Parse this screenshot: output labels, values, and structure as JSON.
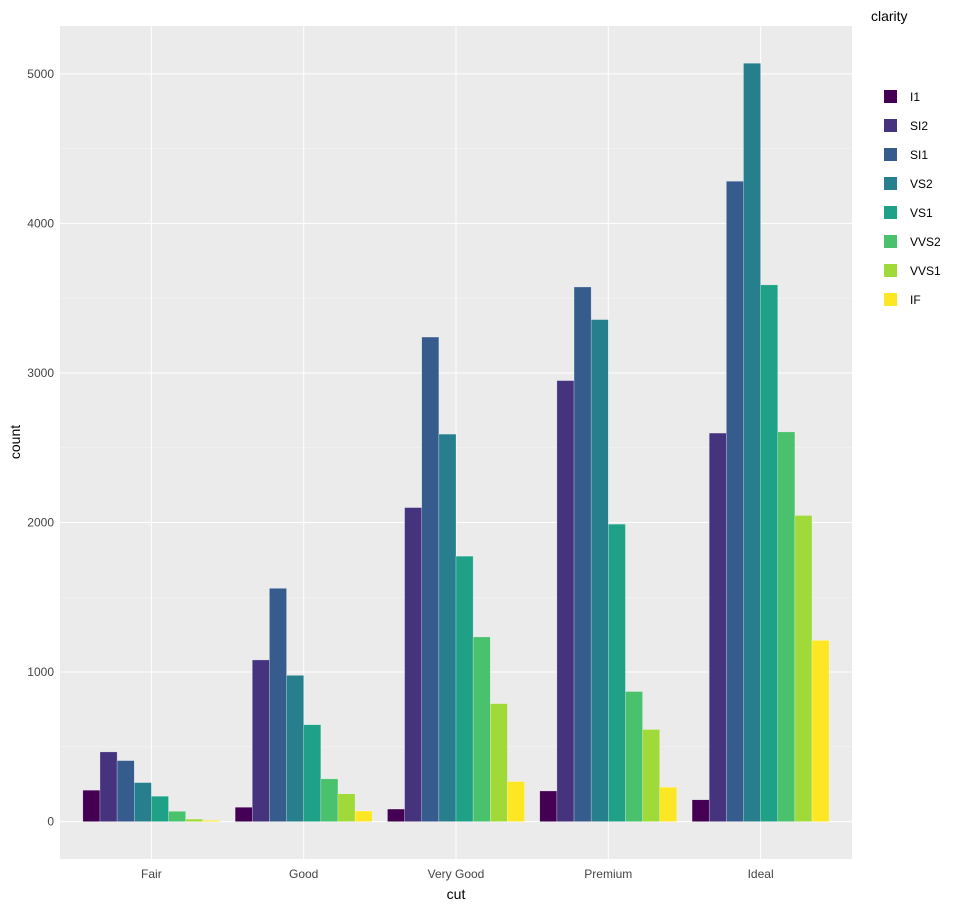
{
  "chart_data": {
    "type": "bar",
    "xlabel": "cut",
    "ylabel": "count",
    "categories": [
      "Fair",
      "Good",
      "Very Good",
      "Premium",
      "Ideal"
    ],
    "yticks": [
      0,
      1000,
      2000,
      3000,
      4000,
      5000
    ],
    "ytick_labels": [
      "0",
      "1000",
      "2000",
      "3000",
      "4000",
      "5000"
    ],
    "ylim": [
      -250,
      5320
    ],
    "grid": true,
    "legend": {
      "title": "clarity",
      "position": "right"
    },
    "series": [
      {
        "name": "I1",
        "color": "#440154",
        "values": [
          210,
          96,
          84,
          205,
          146
        ]
      },
      {
        "name": "SI2",
        "color": "#46337e",
        "values": [
          466,
          1081,
          2100,
          2949,
          2598
        ]
      },
      {
        "name": "SI1",
        "color": "#365c8d",
        "values": [
          408,
          1560,
          3240,
          3575,
          4282
        ]
      },
      {
        "name": "VS2",
        "color": "#277f8e",
        "values": [
          261,
          978,
          2591,
          3357,
          5071
        ]
      },
      {
        "name": "VS1",
        "color": "#1fa187",
        "values": [
          170,
          648,
          1775,
          1989,
          3589
        ]
      },
      {
        "name": "VVS2",
        "color": "#4ac16d",
        "values": [
          69,
          286,
          1235,
          870,
          2606
        ]
      },
      {
        "name": "VVS1",
        "color": "#a0da39",
        "values": [
          17,
          186,
          789,
          616,
          2047
        ]
      },
      {
        "name": "IF",
        "color": "#fde725",
        "values": [
          9,
          71,
          268,
          230,
          1212
        ]
      }
    ]
  },
  "colors": {
    "panel_background": "#ebebeb",
    "gridline": "#ffffff",
    "page_background": "#ffffff"
  }
}
